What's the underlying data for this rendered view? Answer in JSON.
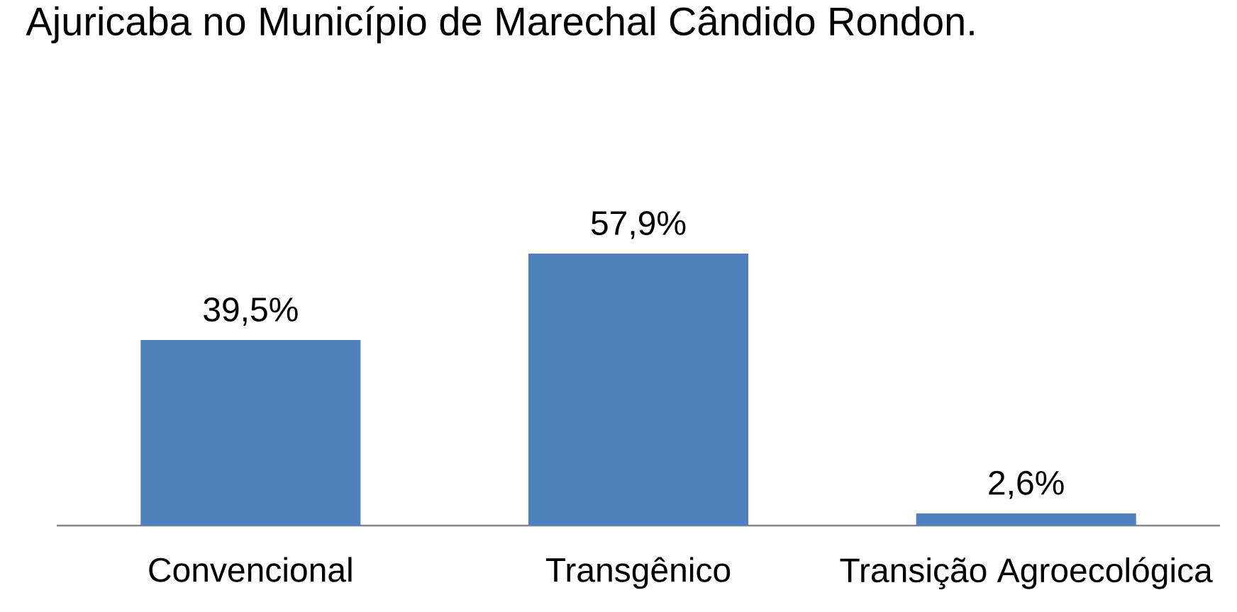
{
  "chart_data": {
    "type": "bar",
    "title": "Ajuricaba no Município de Marechal Cândido Rondon.",
    "categories": [
      "Convencional",
      "Transgênico",
      "Transição Agroecológica"
    ],
    "values": [
      39.5,
      57.9,
      2.6
    ],
    "color": "#4f81bd",
    "value_labels": [
      "39,5%",
      "57,9%",
      "2,6%"
    ]
  }
}
